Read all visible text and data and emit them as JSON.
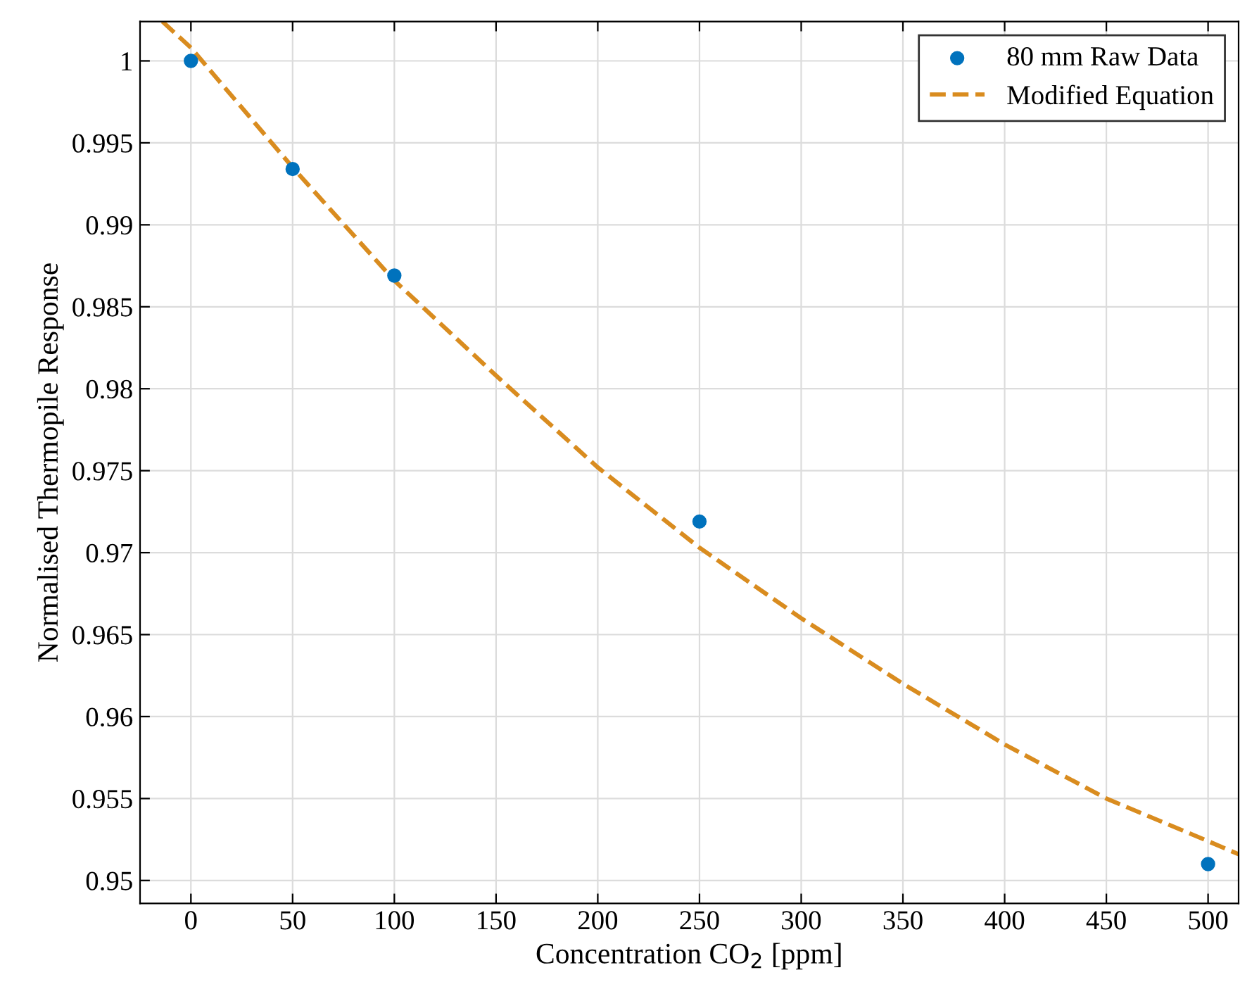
{
  "chart_data": {
    "type": "scatter",
    "xlabel": "Concentration CO$_{2}$ [ppm]",
    "ylabel": "Normalised Thermopile Response",
    "series": [
      {
        "name": "80 mm Raw Data",
        "color": "#0072bd",
        "marker": "circle",
        "x": [
          0,
          50,
          100,
          250,
          500
        ],
        "values": [
          1.0,
          0.9934,
          0.9869,
          0.9719,
          0.951
        ]
      },
      {
        "name": "Modified Equation",
        "type": "line",
        "color": "#d98c1f",
        "line_style": "dashed",
        "marker": "none",
        "x": [
          -14,
          0,
          50,
          100,
          150,
          200,
          250,
          300,
          350,
          400,
          450,
          500,
          515
        ],
        "values": [
          1.0024,
          1.0008,
          0.9935,
          0.9866,
          0.9808,
          0.9752,
          0.9703,
          0.966,
          0.962,
          0.9583,
          0.955,
          0.9524,
          0.9516
        ]
      }
    ],
    "xlim": [
      -25,
      515
    ],
    "ylim": [
      0.9486,
      1.0024
    ],
    "xticks": [
      0,
      50,
      100,
      150,
      200,
      250,
      300,
      350,
      400,
      450,
      500
    ],
    "yticks": [
      {
        "value": 0.95,
        "label": "0.95"
      },
      {
        "value": 0.955,
        "label": "0.955"
      },
      {
        "value": 0.96,
        "label": "0.96"
      },
      {
        "value": 0.965,
        "label": "0.965"
      },
      {
        "value": 0.97,
        "label": "0.97"
      },
      {
        "value": 0.975,
        "label": "0.975"
      },
      {
        "value": 0.98,
        "label": "0.98"
      },
      {
        "value": 0.985,
        "label": "0.985"
      },
      {
        "value": 0.99,
        "label": "0.99"
      },
      {
        "value": 0.995,
        "label": "0.995"
      },
      {
        "value": 1,
        "label": "1"
      }
    ],
    "grid": true,
    "legend": "top right"
  }
}
